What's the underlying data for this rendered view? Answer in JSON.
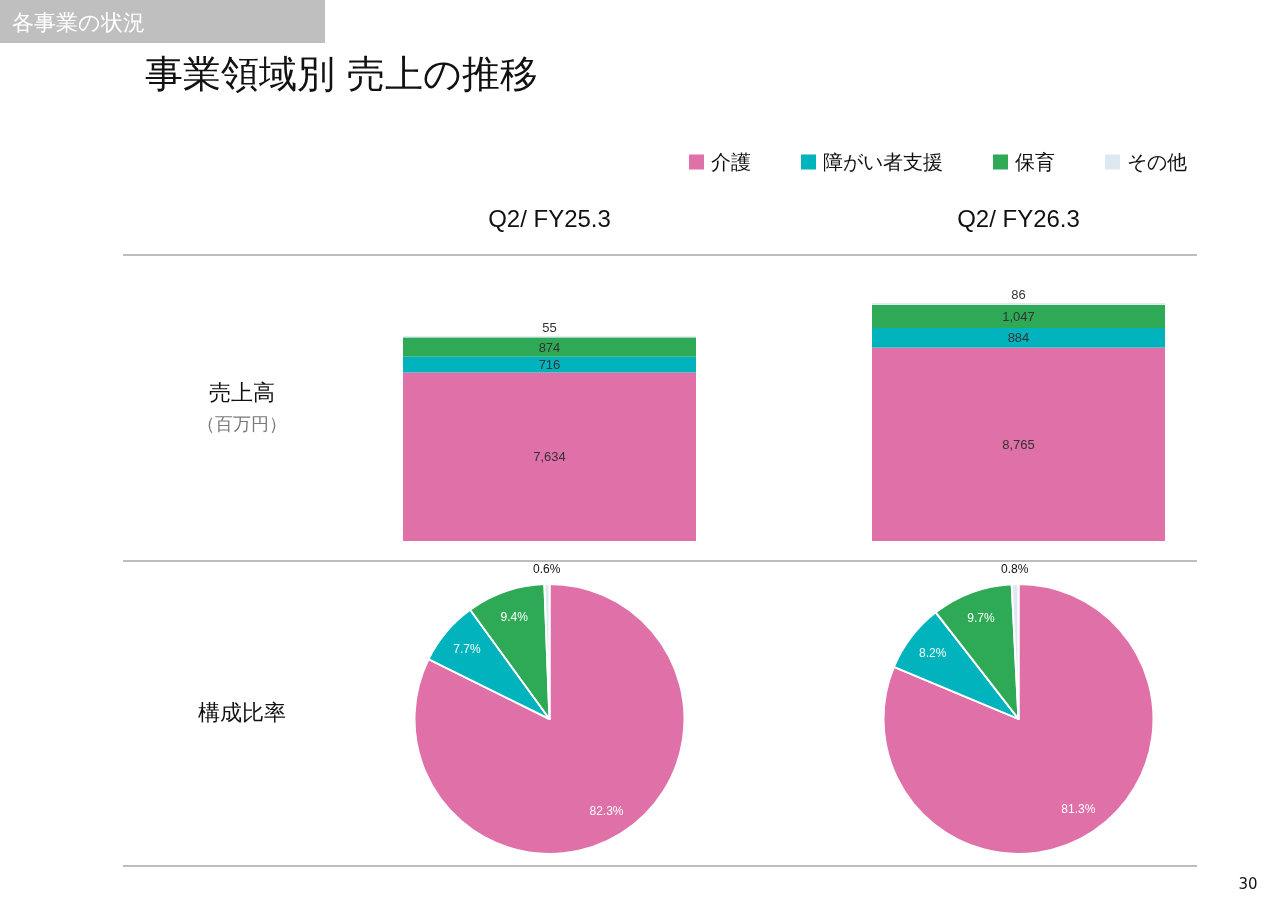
{
  "chart_data": [
    {
      "type": "bar",
      "title": "事業領域別 売上の推移",
      "ylabel": "売上高",
      "annotations": [
        "各事業の状況",
        "（百万円）",
        "30"
      ],
      "categories": [
        "Q2/ FY25.3",
        "Q2/ FY26.3"
      ],
      "stacked": true,
      "legend": "top right",
      "series": [
        {
          "name": "介護",
          "color": "#e070a8",
          "values": [
            7634,
            8765
          ],
          "value_labels": [
            "7,634",
            "8,765"
          ]
        },
        {
          "name": "障がい者支援",
          "color": "#00b3bc",
          "values": [
            716,
            884
          ],
          "value_labels": [
            "716",
            "884"
          ]
        },
        {
          "name": "保育",
          "color": "#2eaa57",
          "values": [
            874,
            1047
          ],
          "value_labels": [
            "874",
            "1,047"
          ]
        },
        {
          "name": "その他",
          "color": "#dde8f3",
          "values": [
            55,
            86
          ],
          "value_labels": [
            "55",
            "86"
          ]
        }
      ]
    },
    {
      "type": "pie",
      "title": "構成比率",
      "categories": [
        null,
        null,
        null,
        null
      ],
      "values": [
        82.3,
        7.7,
        9.4,
        0.6
      ],
      "colors": [
        "#e070a8",
        "#00b3bc",
        "#2eaa57",
        "#dde8f3"
      ],
      "value_labels": [
        "82.3%",
        "7.7%",
        "9.4%",
        "0.6%"
      ]
    },
    {
      "type": "pie",
      "categories": [
        null,
        null,
        null,
        null
      ],
      "values": [
        81.3,
        8.2,
        9.7,
        0.8
      ],
      "colors": [
        "#e070a8",
        "#00b3bc",
        "#2eaa57",
        "#dde8f3"
      ],
      "value_labels": [
        "81.3%",
        "8.2%",
        "9.7%",
        "0.8%"
      ]
    }
  ]
}
